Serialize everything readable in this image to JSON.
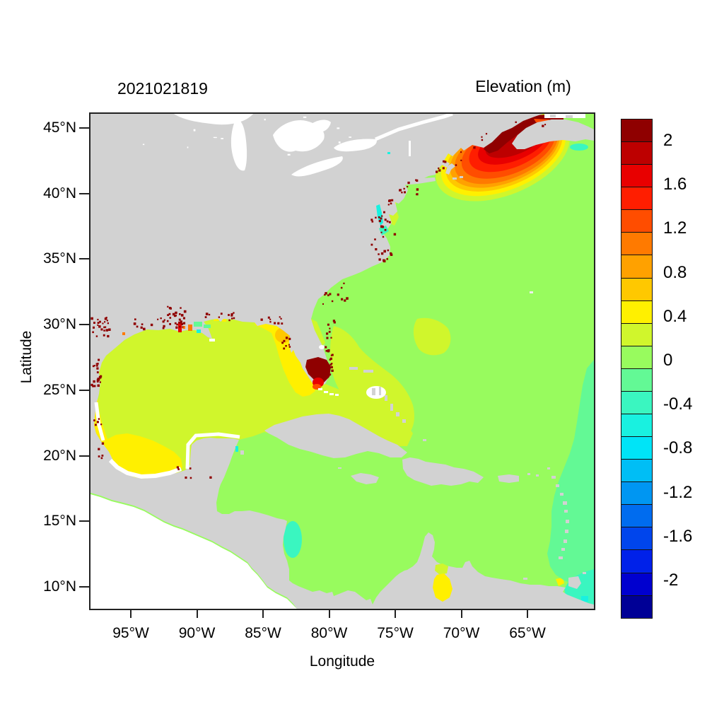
{
  "titles": {
    "datetime_stamp": "2021021819",
    "colorbar_title": "Elevation (m)"
  },
  "axes": {
    "x_label": "Longitude",
    "y_label": "Latitude",
    "x_ticks": [
      {
        "label": "95°W",
        "lon": -95
      },
      {
        "label": "90°W",
        "lon": -90
      },
      {
        "label": "85°W",
        "lon": -85
      },
      {
        "label": "80°W",
        "lon": -80
      },
      {
        "label": "75°W",
        "lon": -75
      },
      {
        "label": "70°W",
        "lon": -70
      },
      {
        "label": "65°W",
        "lon": -65
      }
    ],
    "y_ticks": [
      {
        "label": "45°N",
        "lat": 45
      },
      {
        "label": "40°N",
        "lat": 40
      },
      {
        "label": "35°N",
        "lat": 35
      },
      {
        "label": "30°N",
        "lat": 30
      },
      {
        "label": "25°N",
        "lat": 25
      },
      {
        "label": "20°N",
        "lat": 20
      },
      {
        "label": "15°N",
        "lat": 15
      },
      {
        "label": "10°N",
        "lat": 10
      }
    ]
  },
  "colors": {
    "land": "#d2d2d2",
    "background": "#ffffff",
    "frame": "#222222"
  },
  "chart_data": {
    "type": "heatmap",
    "subtype": "geographic-filled-contour-map",
    "title": "Elevation (m)",
    "timestamp_label": "2021021819",
    "xlabel": "Longitude",
    "ylabel": "Latitude",
    "x_tick_labels": [
      "95°W",
      "90°W",
      "85°W",
      "80°W",
      "75°W",
      "70°W",
      "65°W"
    ],
    "y_tick_labels": [
      "45°N",
      "40°N",
      "35°N",
      "30°N",
      "25°N",
      "20°N",
      "15°N",
      "10°N"
    ],
    "lon_range": [
      -98.05,
      -59.98
    ],
    "lat_range": [
      8.3,
      46.1
    ],
    "units": "m",
    "grid": false,
    "legend_position": "right-colorbar",
    "colorbar": {
      "min": -2.2,
      "max": 2.2,
      "step": 0.2,
      "tick_labels": [
        "2",
        "1.6",
        "1.2",
        "0.8",
        "0.4",
        "0",
        "-0.4",
        "-0.8",
        "-1.2",
        "-1.6",
        "-2"
      ],
      "colors": [
        "#8f0000",
        "#bd0000",
        "#e80000",
        "#ff1e00",
        "#ff4d00",
        "#ff7a00",
        "#ffa100",
        "#ffc800",
        "#fff000",
        "#d0f62c",
        "#98fb5e",
        "#63f995",
        "#3af6c0",
        "#19f1e0",
        "#00e4f7",
        "#00bef5",
        "#0096f2",
        "#006cef",
        "#0045ec",
        "#0021e9",
        "#0000cf",
        "#000096"
      ]
    },
    "regions": [
      {
        "name": "Open Atlantic Ocean",
        "approx_value_m": "0 to 0.2"
      },
      {
        "name": "Caribbean Sea",
        "approx_value_m": "0 to 0.2"
      },
      {
        "name": "Gulf of Mexico (central basin)",
        "approx_value_m": "0.2 to 0.4"
      },
      {
        "name": "West Florida shelf",
        "approx_value_m": "0.4 to 0.8"
      },
      {
        "name": "Bay of Campeche",
        "approx_value_m": "0.4 to 0.6"
      },
      {
        "name": "Western Gulf along Texas–Mexico coast",
        "approx_value_m": "0.4 to 0.6"
      },
      {
        "name": "Gulf of Maine (concentric bands rising shoreward)",
        "approx_value_m": "0.4 to 1.8"
      },
      {
        "name": "Bay of Fundy",
        "approx_value_m": "> 2"
      },
      {
        "name": "South Florida / Biscayne Bay coastal pocket",
        "approx_value_m": "> 2"
      },
      {
        "name": "Coastal wet/dry fringe speckles (Gulf & US East coasts)",
        "approx_value_m": "> 2"
      },
      {
        "name": "Chesapeake / Pamlico sounds",
        "approx_value_m": "-0.6 to -0.2"
      },
      {
        "name": "Eastern open boundary along Lesser Antilles",
        "approx_value_m": "-0.4 to 0"
      },
      {
        "name": "Trinidad / southeast corner",
        "approx_value_m": "-0.6 to -0.2"
      },
      {
        "name": "Honduras–Nicaragua shelf patch",
        "approx_value_m": "-0.4 to -0.2"
      },
      {
        "name": "Gulf of Venezuela / Lake Maracaibo",
        "approx_value_m": "0.4 to 0.6"
      },
      {
        "name": "Mid-Atlantic offshore blob (~28N 72W)",
        "approx_value_m": "0.2 to 0.4"
      },
      {
        "name": "Land mask",
        "approx_value_m": "gray (no data)"
      },
      {
        "name": "Pacific side of Central America",
        "approx_value_m": "white (outside model domain)"
      }
    ]
  }
}
